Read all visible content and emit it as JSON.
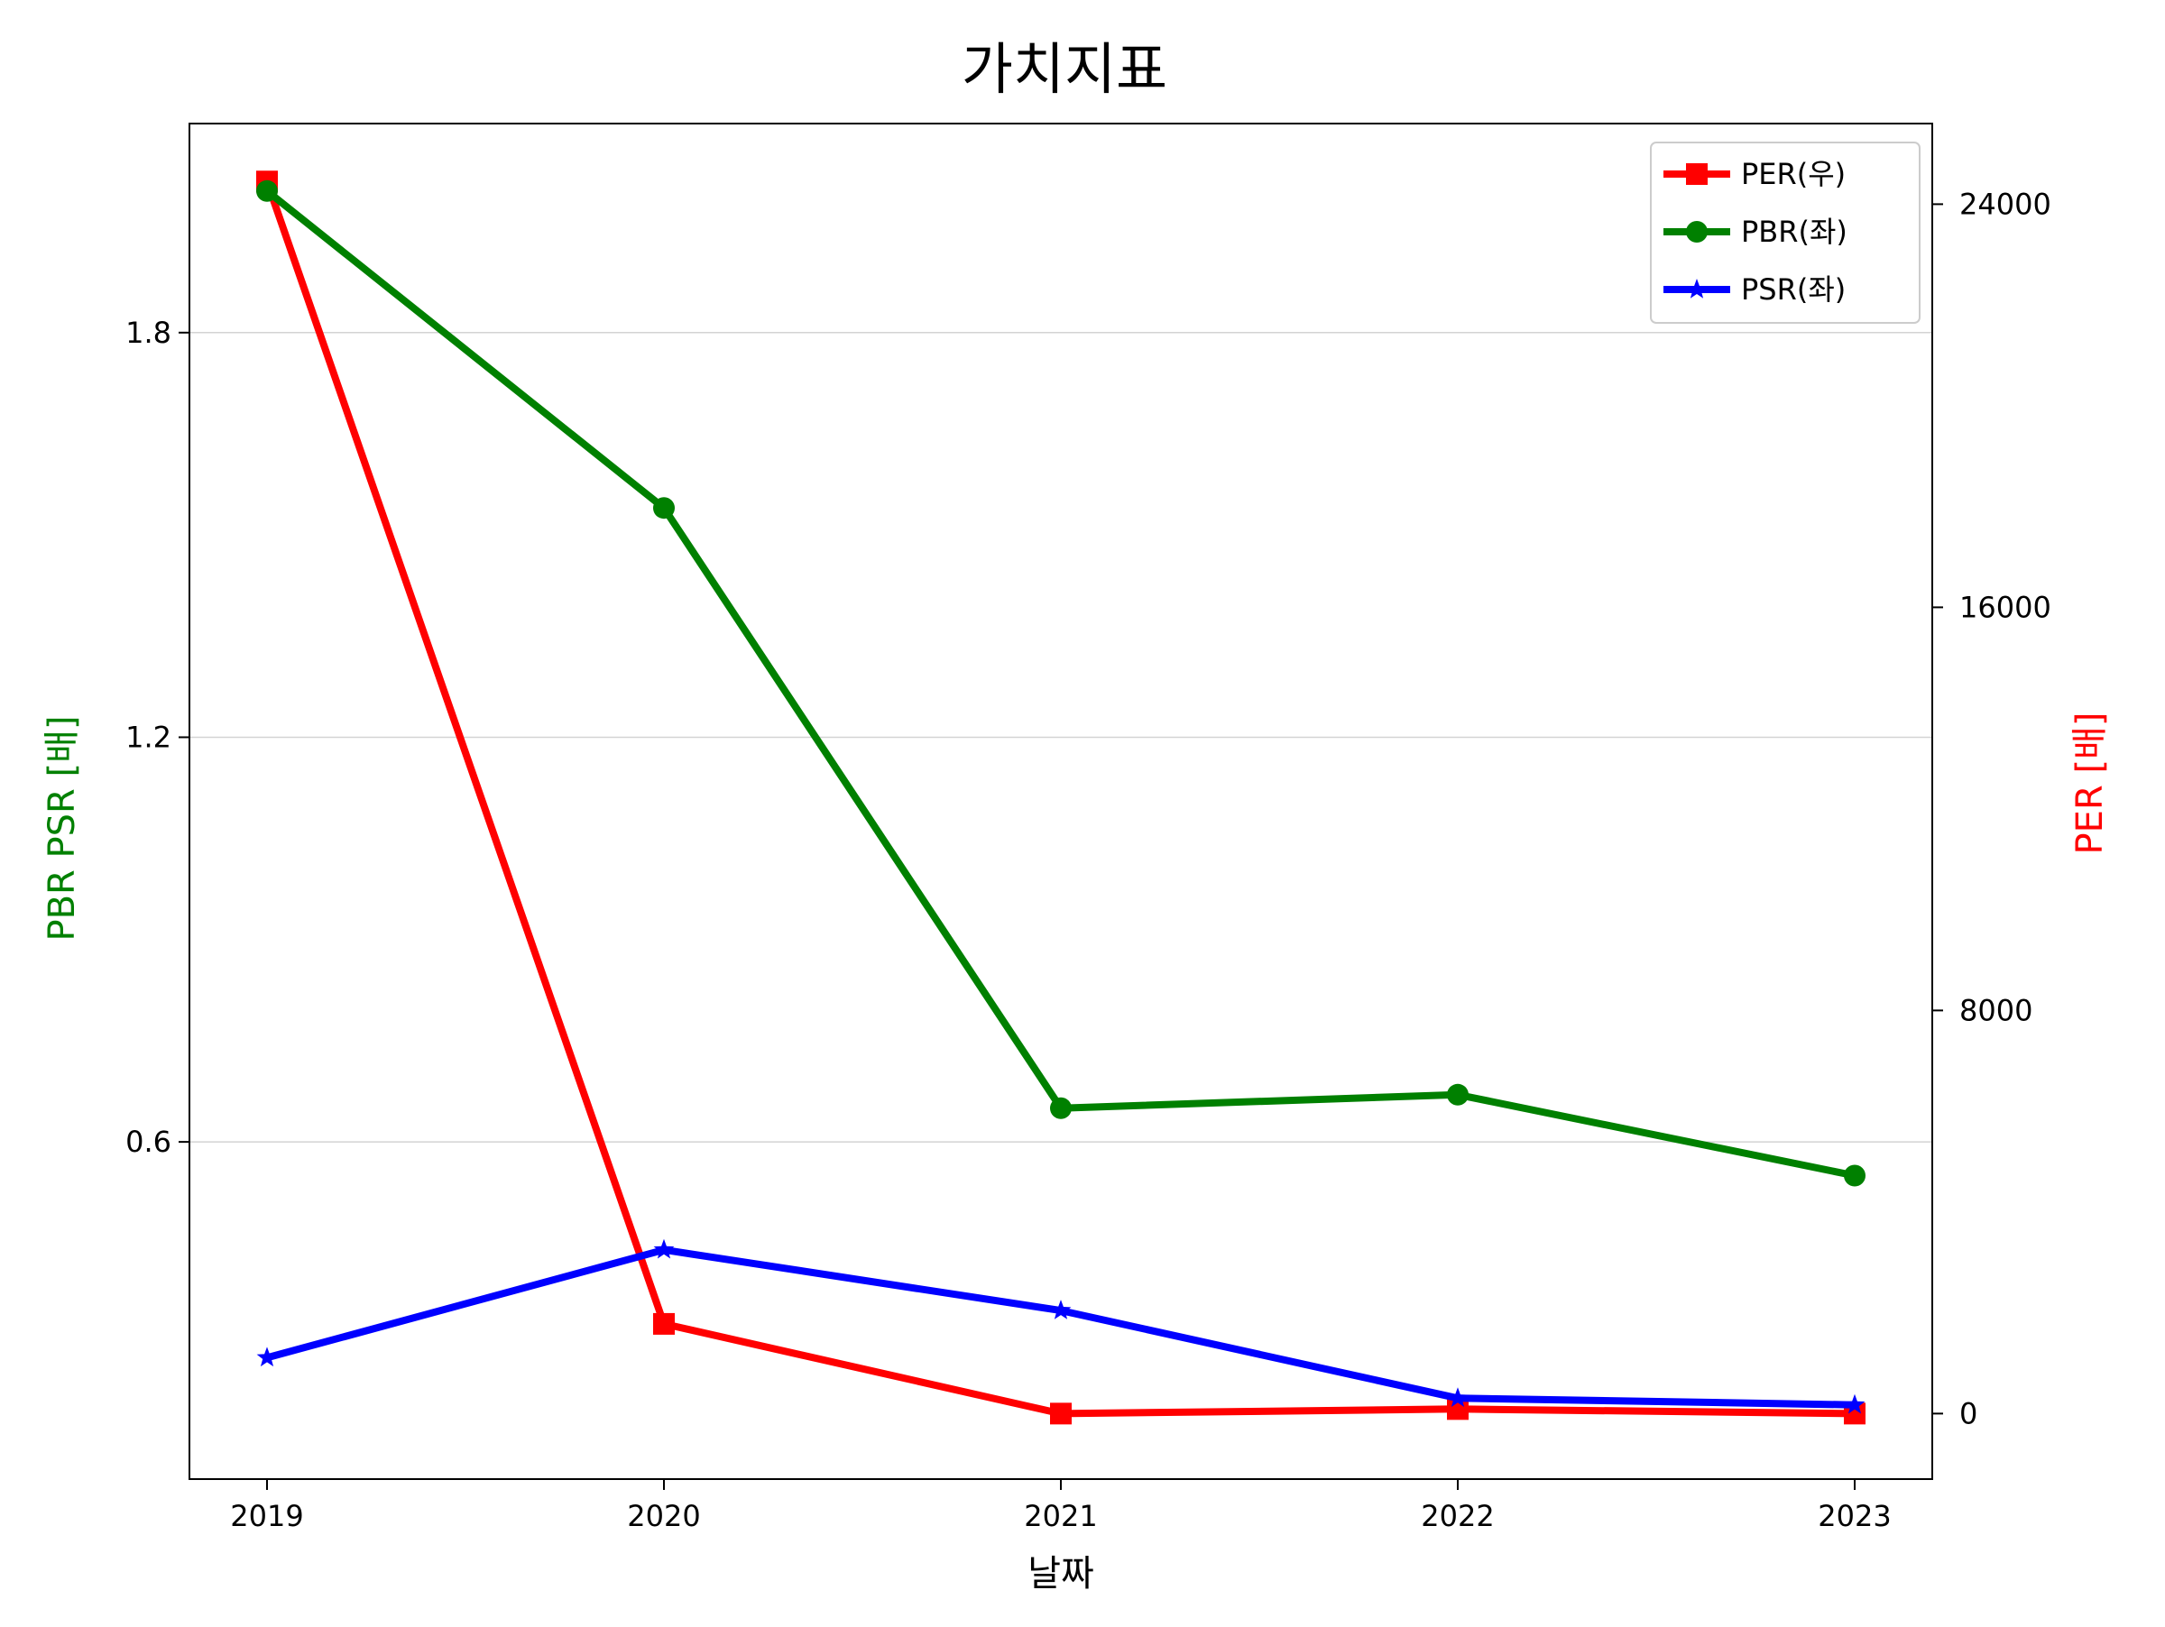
{
  "chart_data": {
    "type": "line",
    "title": "가치지표",
    "xlabel": "날짜",
    "ylabel_left": "PBR PSR [배]",
    "ylabel_right": "PER [배]",
    "categories": [
      "2019",
      "2020",
      "2021",
      "2022",
      "2023"
    ],
    "y_left_ticks": [
      "0.6",
      "1.2",
      "1.8"
    ],
    "y_right_ticks": [
      "0",
      "8000",
      "16000",
      "24000"
    ],
    "y_left_lim": [
      0.1,
      2.11
    ],
    "y_right_lim": [
      -1300,
      25600
    ],
    "grid": "horizontal (left axis)",
    "legend_position": "top-right",
    "series": [
      {
        "name": "PER(우)",
        "axis": "right",
        "color": "#ff0000",
        "marker": "square",
        "values": [
          24450,
          1780,
          0,
          90,
          0
        ]
      },
      {
        "name": "PBR(좌)",
        "axis": "left",
        "color": "#008000",
        "marker": "circle",
        "values": [
          2.01,
          1.54,
          0.65,
          0.67,
          0.55
        ]
      },
      {
        "name": "PSR(좌)",
        "axis": "left",
        "color": "#0000ff",
        "marker": "star",
        "values": [
          0.28,
          0.44,
          0.35,
          0.22,
          0.21
        ]
      }
    ]
  }
}
